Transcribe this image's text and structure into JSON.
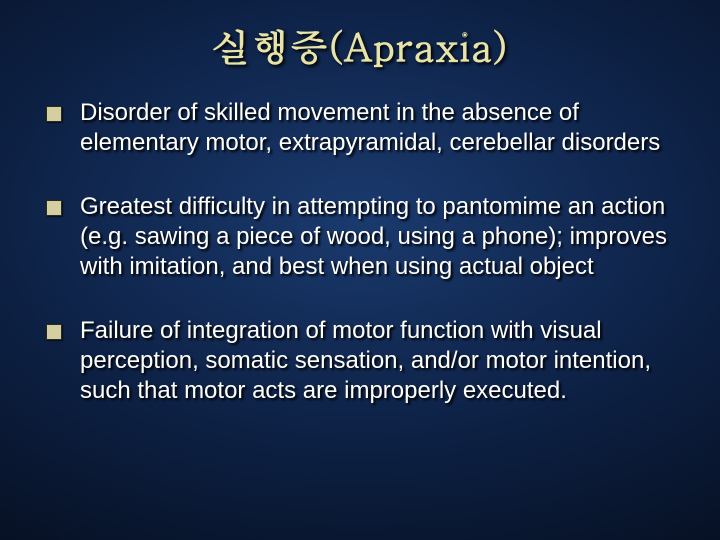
{
  "slide": {
    "title": "실행증(Apraxia)",
    "title_color": "#e8e4a8",
    "title_fontsize": 38,
    "title_font": "serif",
    "bullet_marker_color": "#d4cfa0",
    "body_color": "#ffffff",
    "body_fontsize": 24,
    "background_gradient": {
      "type": "radial",
      "inner": "#1a3a6e",
      "mid": "#0d2145",
      "outer": "#030812"
    },
    "text_shadow": "2px 2px 2px #000000",
    "bullets": [
      {
        "text": "Disorder of skilled movement in the absence of elementary motor, extrapyramidal, cerebellar disorders"
      },
      {
        "text": "Greatest difficulty in attempting to pantomime an action (e.g. sawing a piece of wood, using a phone); improves with imitation, and best when using actual object"
      },
      {
        "text": "Failure of integration of motor function with visual perception, somatic sensation, and/or motor intention, such that motor acts are improperly executed."
      }
    ]
  }
}
